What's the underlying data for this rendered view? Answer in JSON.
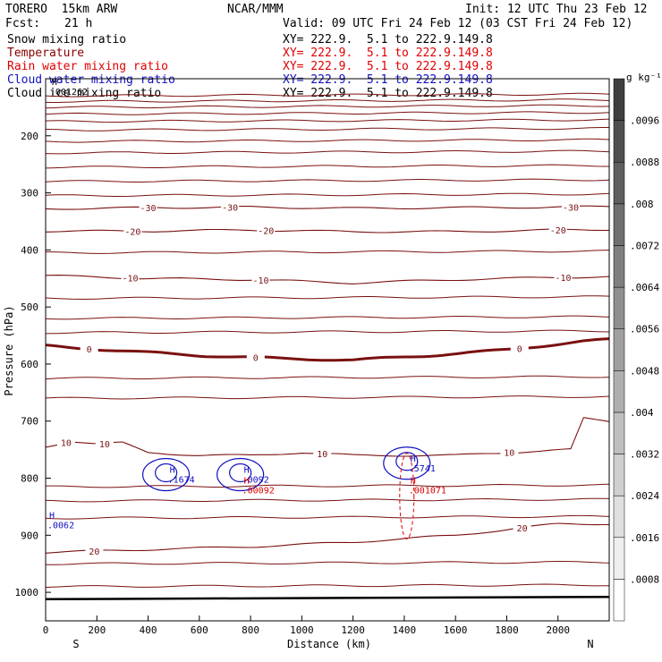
{
  "header": {
    "model": "TORERO  15km ARW",
    "center": "NCAR/MMM",
    "init": "Init: 12 UTC Thu 23 Feb 12",
    "fcst_label": "Fcst:",
    "fcst_value": "21 h",
    "valid": "Valid: 09 UTC Fri 24 Feb 12 (03 CST Fri 24 Feb 12)"
  },
  "fields": [
    {
      "name": "Snow mixing ratio",
      "color": "#000000",
      "xy": "XY= 222.9.  5.1 to 222.9.149.8"
    },
    {
      "name": "Temperature",
      "color": "#8b0000",
      "xy": "XY= 222.9.  5.1 to 222.9.149.8"
    },
    {
      "name": "Rain water mixing ratio",
      "color": "#e00000",
      "xy": "XY= 222.9.  5.1 to 222.9.149.8"
    },
    {
      "name": "Cloud water mixing ratio",
      "color": "#1010c0",
      "xy": "XY= 222.9.  5.1 to 222.9.149.8"
    },
    {
      "name": "Cloud ice mixing ratio",
      "color": "#000000",
      "xy": "XY= 222.9.  5.1 to 222.9.149.8"
    }
  ],
  "colorbar": {
    "unit": "g kg⁻¹",
    "labels": [
      ".0096",
      ".0088",
      ".008",
      ".0072",
      ".0064",
      ".0056",
      ".0048",
      ".004",
      ".0032",
      ".0024",
      ".0016",
      ".0008"
    ],
    "label_values": [
      0.0096,
      0.0088,
      0.008,
      0.0072,
      0.0064,
      0.0056,
      0.0048,
      0.004,
      0.0032,
      0.0024,
      0.0016,
      0.0008
    ],
    "range": [
      0,
      0.0104
    ]
  },
  "chart_data": {
    "type": "contour",
    "xlabel": "Distance (km)",
    "ylabel": "Pressure (hPa)",
    "x_range": [
      0,
      2200
    ],
    "y_range": [
      100,
      1050
    ],
    "x_ticks": [
      0,
      200,
      400,
      600,
      800,
      1000,
      1200,
      1400,
      1600,
      1800,
      2000
    ],
    "y_ticks": [
      200,
      300,
      400,
      500,
      600,
      700,
      800,
      900,
      1000
    ],
    "x_end_labels": {
      "left": "S",
      "right": "N"
    },
    "temperature_contours": [
      {
        "label": "-30",
        "x": [
          0,
          400,
          800,
          1200,
          1600,
          2000,
          2200
        ],
        "p": [
          328,
          326,
          325,
          327,
          326,
          325,
          324
        ],
        "label_at": [
          400,
          720,
          2050
        ]
      },
      {
        "label": "-20",
        "x": [
          0,
          400,
          800,
          1200,
          1600,
          2000,
          2200
        ],
        "p": [
          367,
          367,
          365,
          368,
          368,
          365,
          364
        ],
        "label_at": [
          340,
          860,
          2000
        ]
      },
      {
        "label": "-10",
        "x": [
          0,
          400,
          800,
          1200,
          1600,
          2000,
          2200
        ],
        "p": [
          445,
          450,
          452,
          458,
          452,
          448,
          447
        ],
        "label_at": [
          330,
          840,
          2020
        ]
      },
      {
        "label": "0",
        "bold": true,
        "x": [
          0,
          300,
          600,
          900,
          1200,
          1500,
          1800,
          2100,
          2200
        ],
        "p": [
          568,
          577,
          585,
          590,
          593,
          585,
          575,
          560,
          557
        ],
        "label_at": [
          170,
          820,
          1850
        ]
      },
      {
        "label": "10",
        "x": [
          0,
          100,
          200,
          300,
          400,
          600,
          800,
          1000,
          1200,
          1400,
          1600,
          1800,
          2050,
          2100,
          2200
        ],
        "p": [
          745,
          735,
          740,
          738,
          755,
          760,
          760,
          755,
          760,
          760,
          760,
          755,
          750,
          695,
          700
        ],
        "label_at": [
          80,
          230,
          1080,
          1810
        ]
      },
      {
        "label": "20",
        "x": [
          0,
          400,
          800,
          1200,
          1600,
          2000,
          2200
        ],
        "p": [
          930,
          925,
          920,
          912,
          900,
          880,
          880
        ],
        "label_at": [
          190,
          1860
        ]
      }
    ],
    "other_isotherm_p": [
      130,
      140,
      150,
      162,
      175,
      190,
      210,
      230,
      255,
      280,
      305,
      405,
      485,
      520,
      545,
      625,
      660,
      815,
      840,
      870,
      950,
      990
    ],
    "maxima": [
      {
        "field": "Cloud ice mixing ratio",
        "x": 10,
        "p": 120,
        "value": ".001262"
      },
      {
        "field": "Cloud water mixing ratio",
        "x": 470,
        "p": 800,
        "value": ".1674"
      },
      {
        "field": "Cloud water mixing ratio",
        "x": 760,
        "p": 800,
        "value": ".0092"
      },
      {
        "field": "Rain water mixing ratio",
        "x": 760,
        "p": 800,
        "value": ".00092"
      },
      {
        "field": "Cloud water mixing ratio",
        "x": 1410,
        "p": 780,
        "value": ".5741"
      },
      {
        "field": "Rain water mixing ratio",
        "x": 1410,
        "p": 800,
        "value": ".001071"
      },
      {
        "field": "Cloud water mixing ratio",
        "x": 0,
        "p": 880,
        "value": ".0062"
      }
    ]
  }
}
